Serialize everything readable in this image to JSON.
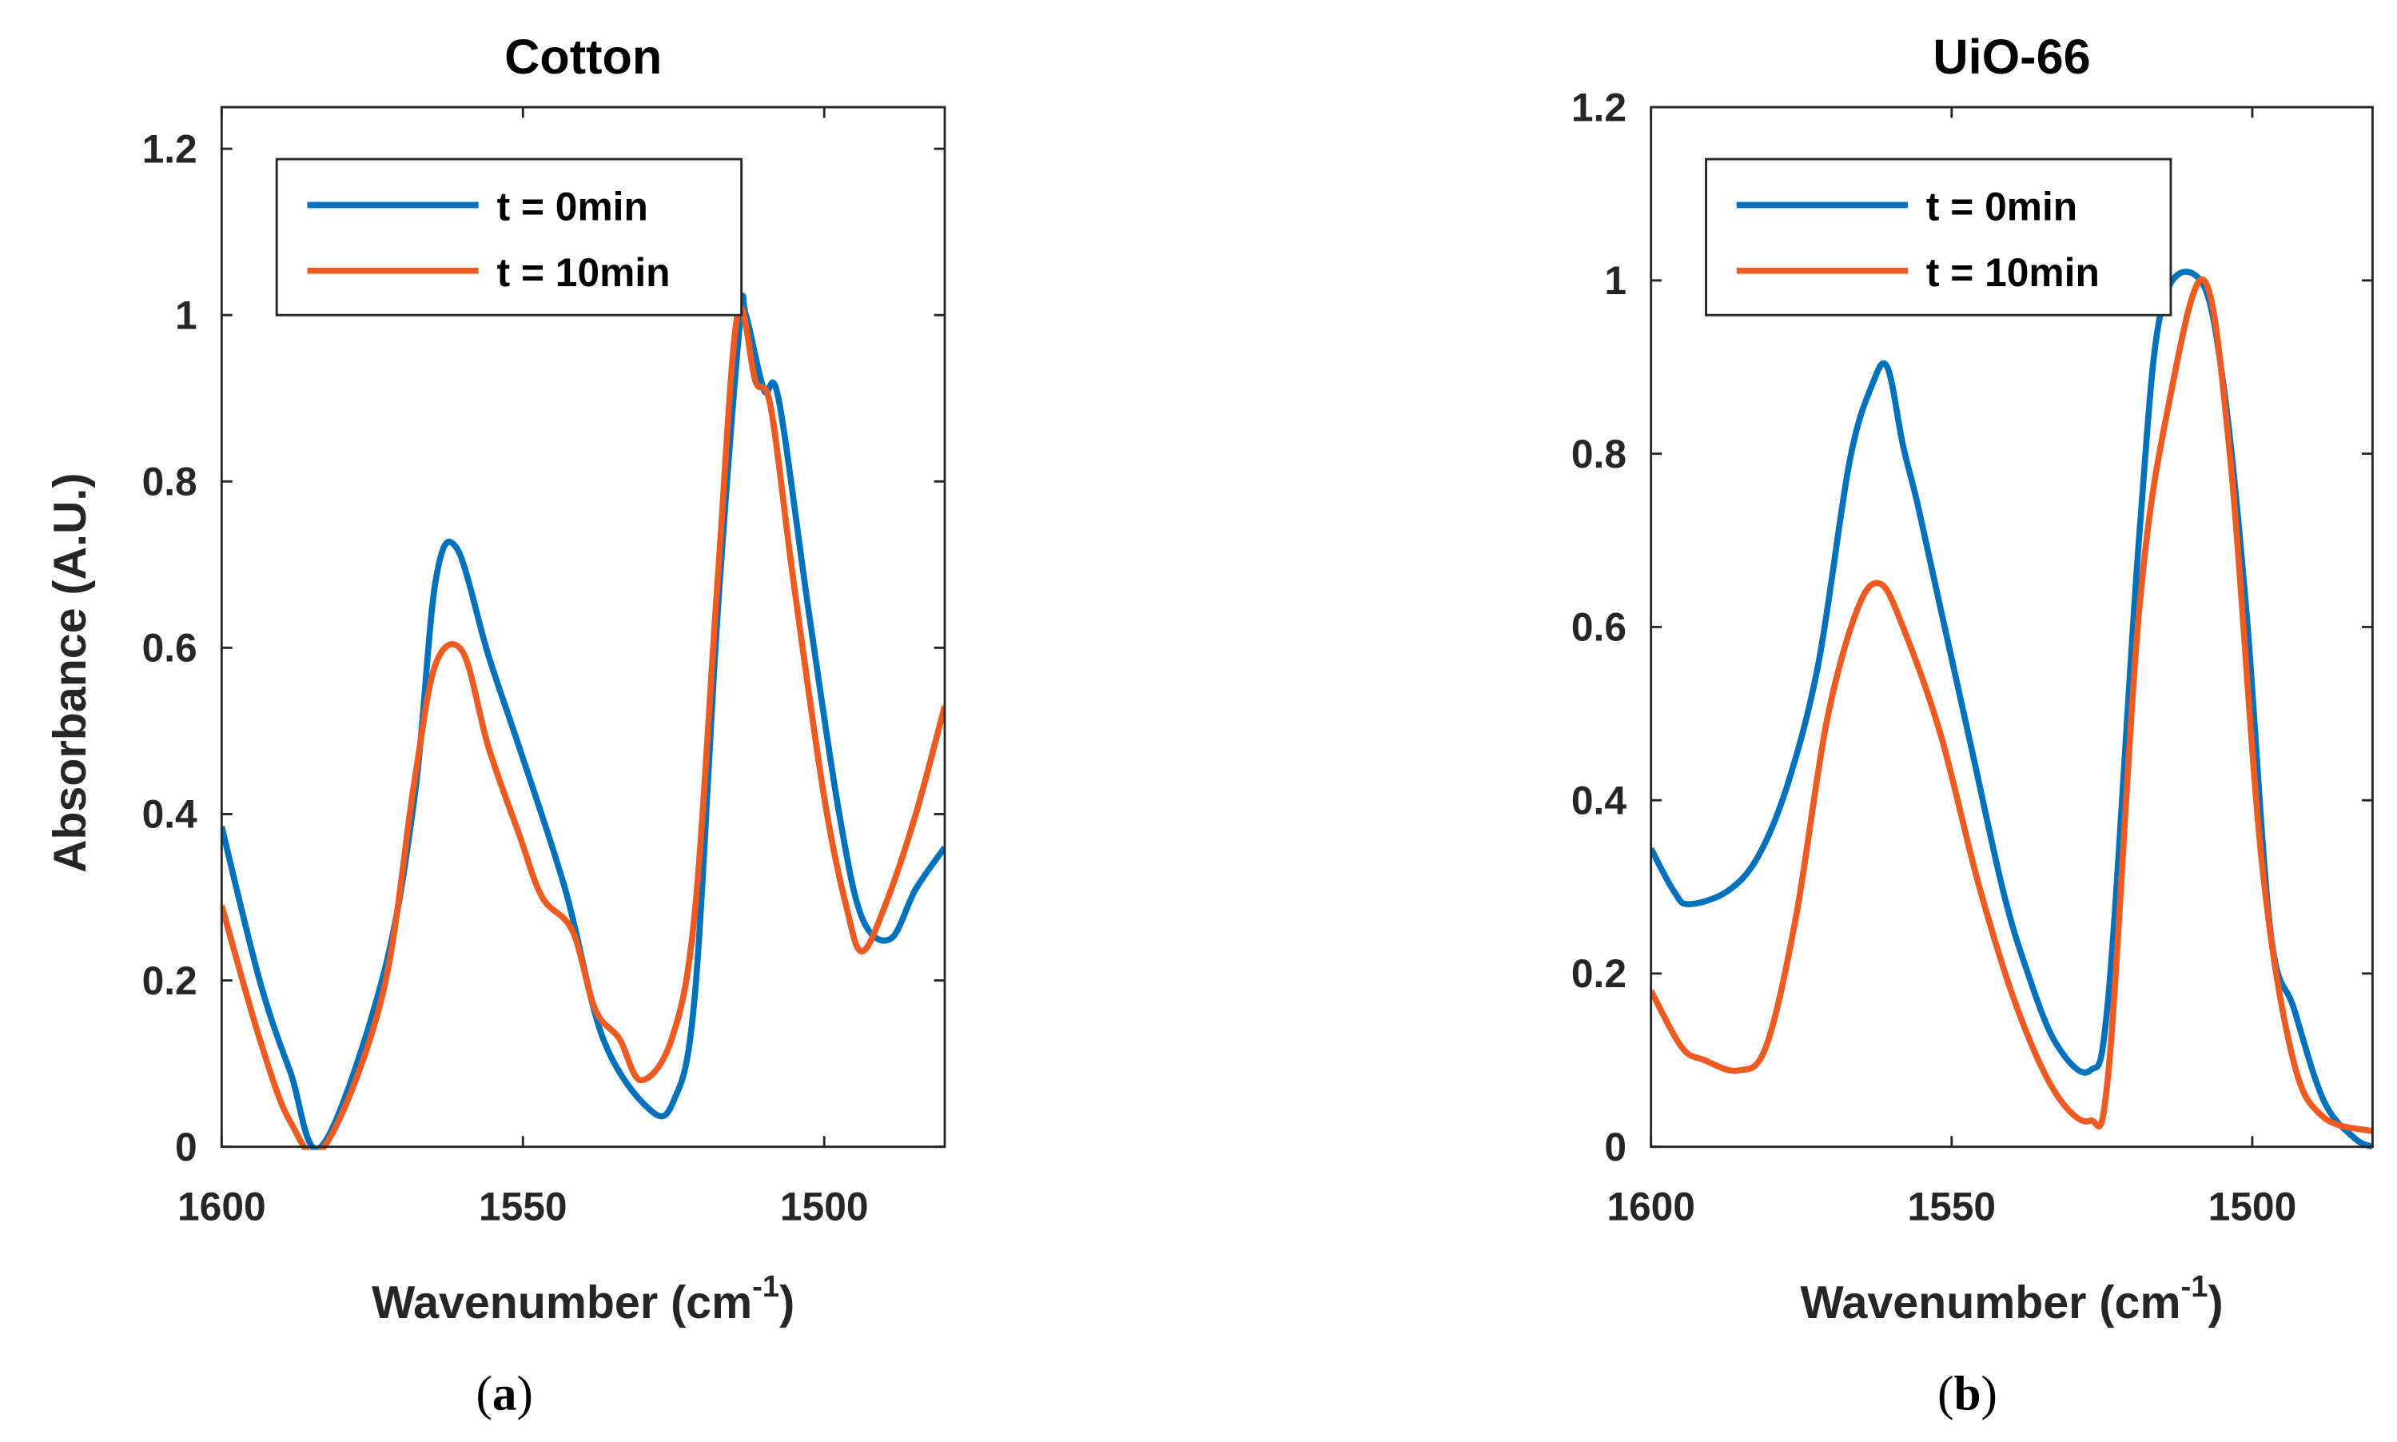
{
  "chart_data": [
    {
      "type": "line",
      "panel_caption": "a",
      "title": "Cotton",
      "xlabel": "Wavenumber (cm",
      "xlabel_sup": "-1",
      "xlabel_end": ")",
      "ylabel": "Absorbance (A.U.)",
      "xlim": [
        1600,
        1480
      ],
      "ylim": [
        0,
        1.25
      ],
      "x_reversed": true,
      "xticks": [
        1600,
        1550,
        1500
      ],
      "yticks": [
        0,
        0.2,
        0.4,
        0.6,
        0.8,
        1,
        1.2
      ],
      "ytick_labels": [
        "0",
        "0.2",
        "0.4",
        "0.6",
        "0.8",
        "1",
        "1.2"
      ],
      "legend_position": "top-left",
      "grid": false,
      "series": [
        {
          "name": "t = 0min",
          "color": "#0072BD",
          "x": [
            1600,
            1593.7,
            1588.6,
            1583.5,
            1573.4,
            1568,
            1564.5,
            1561,
            1555.7,
            1550.6,
            1543,
            1536.7,
            1529,
            1525,
            1521.5,
            1517.7,
            1514,
            1513,
            1510,
            1507.6,
            1502.5,
            1497.5,
            1493.7,
            1489,
            1484.8,
            1480
          ],
          "y": [
            0.385,
            0.2,
            0.09,
            0,
            0.2,
            0.42,
            0.68,
            0.72,
            0.59,
            0.48,
            0.31,
            0.13,
            0.045,
            0.055,
            0.18,
            0.64,
            0.99,
            1.0,
            0.91,
            0.9,
            0.64,
            0.4,
            0.275,
            0.25,
            0.31,
            0.36
          ]
        },
        {
          "name": "t = 10min",
          "color": "#EE5A1F",
          "x": [
            1600,
            1593.7,
            1588.6,
            1583,
            1573.4,
            1568,
            1564.5,
            1560,
            1555.7,
            1550.6,
            1546.8,
            1541.8,
            1538,
            1534,
            1530.4,
            1525.3,
            1521.5,
            1517.7,
            1514.4,
            1511.4,
            1508.9,
            1505.1,
            1500,
            1496.2,
            1493.7,
            1489.9,
            1484.8,
            1480
          ],
          "y": [
            0.29,
            0.13,
            0.03,
            0,
            0.18,
            0.44,
            0.58,
            0.595,
            0.48,
            0.375,
            0.3,
            0.26,
            0.165,
            0.13,
            0.08,
            0.13,
            0.28,
            0.68,
            1.0,
            0.92,
            0.89,
            0.68,
            0.42,
            0.285,
            0.235,
            0.29,
            0.4,
            0.53
          ]
        }
      ]
    },
    {
      "type": "line",
      "panel_caption": "b",
      "title": "UiO-66",
      "xlabel": "Wavenumber (cm",
      "xlabel_sup": "-1",
      "xlabel_end": ")",
      "ylabel": "",
      "xlim": [
        1600,
        1480
      ],
      "ylim": [
        0,
        1.2
      ],
      "x_reversed": true,
      "xticks": [
        1600,
        1550,
        1500
      ],
      "yticks": [
        0,
        0.2,
        0.4,
        0.6,
        0.8,
        1,
        1.2
      ],
      "ytick_labels": [
        "0",
        "0.2",
        "0.4",
        "0.6",
        "0.8",
        "1",
        "1.2"
      ],
      "legend_position": "top-left",
      "grid": false,
      "series": [
        {
          "name": "t = 0min",
          "color": "#0072BD",
          "x": [
            1600,
            1596.2,
            1593.7,
            1587.3,
            1582.2,
            1577.2,
            1572.1,
            1567,
            1563.2,
            1560.7,
            1558.1,
            1555.6,
            1551.8,
            1546.7,
            1541.6,
            1537.8,
            1532.7,
            1527,
            1523.9,
            1518.8,
            1515,
            1508.6,
            1504.8,
            1501,
            1497,
            1493.1,
            1488.1,
            1483,
            1480
          ],
          "y": [
            0.344,
            0.295,
            0.28,
            0.295,
            0.335,
            0.42,
            0.56,
            0.79,
            0.88,
            0.9,
            0.81,
            0.74,
            0.62,
            0.46,
            0.3,
            0.21,
            0.12,
            0.088,
            0.176,
            0.705,
            0.97,
            1.0,
            0.88,
            0.62,
            0.25,
            0.16,
            0.053,
            0.01,
            0
          ]
        },
        {
          "name": "t = 10min",
          "color": "#EE5A1F",
          "x": [
            1600,
            1594.9,
            1591.1,
            1585.5,
            1580.9,
            1575.9,
            1570.8,
            1565.7,
            1561.9,
            1558.1,
            1551.8,
            1545.4,
            1539.1,
            1532.7,
            1527,
            1523.9,
            1518.8,
            1513.7,
            1508,
            1503.6,
            1498.5,
            1493.4,
            1488.3,
            1480
          ],
          "y": [
            0.18,
            0.115,
            0.1,
            0.088,
            0.115,
            0.265,
            0.49,
            0.62,
            0.65,
            0.6,
            0.475,
            0.3,
            0.16,
            0.062,
            0.03,
            0.088,
            0.62,
            0.864,
            1.0,
            0.79,
            0.335,
            0.106,
            0.035,
            0.018
          ]
        }
      ]
    }
  ]
}
